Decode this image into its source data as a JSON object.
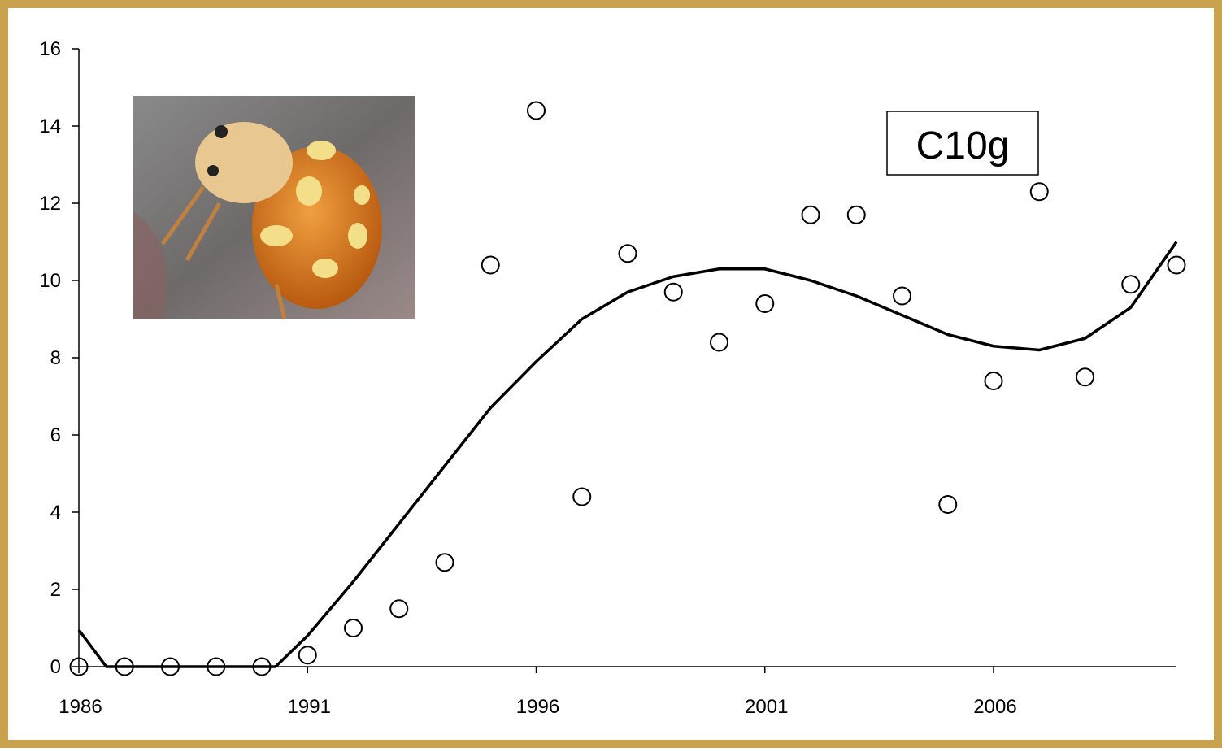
{
  "chart_data": {
    "type": "scatter",
    "annotation": "C10g",
    "xlim": [
      1986,
      2010
    ],
    "xticks": [
      1986,
      1991,
      1996,
      2001,
      2006
    ],
    "ylim": [
      0,
      16
    ],
    "yticks": [
      0,
      2,
      4,
      6,
      8,
      10,
      12,
      14,
      16
    ],
    "grid": false,
    "series": [
      {
        "type": "scatter",
        "color": "#000000",
        "x": [
          1986,
          1987,
          1988,
          1989,
          1990,
          1991,
          1992,
          1993,
          1994,
          1995,
          1996,
          1997,
          1998,
          1999,
          2000,
          2001,
          2002,
          2003,
          2004,
          2005,
          2006,
          2007,
          2008,
          2009,
          2010
        ],
        "values": [
          0,
          0,
          0,
          0,
          0,
          0.3,
          1.0,
          1.5,
          2.7,
          10.4,
          14.4,
          4.4,
          10.7,
          9.7,
          8.4,
          9.4,
          11.7,
          11.7,
          9.6,
          4.2,
          7.4,
          12.3,
          7.5,
          9.9,
          10.4
        ]
      },
      {
        "type": "line",
        "color": "#000000",
        "x": [
          1986,
          1986.6,
          1987,
          1988,
          1989,
          1990,
          1990.3,
          1991,
          1992,
          1993,
          1994,
          1995,
          1996,
          1997,
          1998,
          1999,
          2000,
          2001,
          2002,
          2003,
          2004,
          2005,
          2006,
          2007,
          2008,
          2009,
          2010
        ],
        "values": [
          0.95,
          0,
          0,
          0,
          0,
          0,
          0,
          0.8,
          2.2,
          3.7,
          5.2,
          6.7,
          7.9,
          9.0,
          9.7,
          10.1,
          10.3,
          10.3,
          10.0,
          9.6,
          9.1,
          8.6,
          8.3,
          8.2,
          8.5,
          9.3,
          11.0
        ]
      }
    ]
  }
}
